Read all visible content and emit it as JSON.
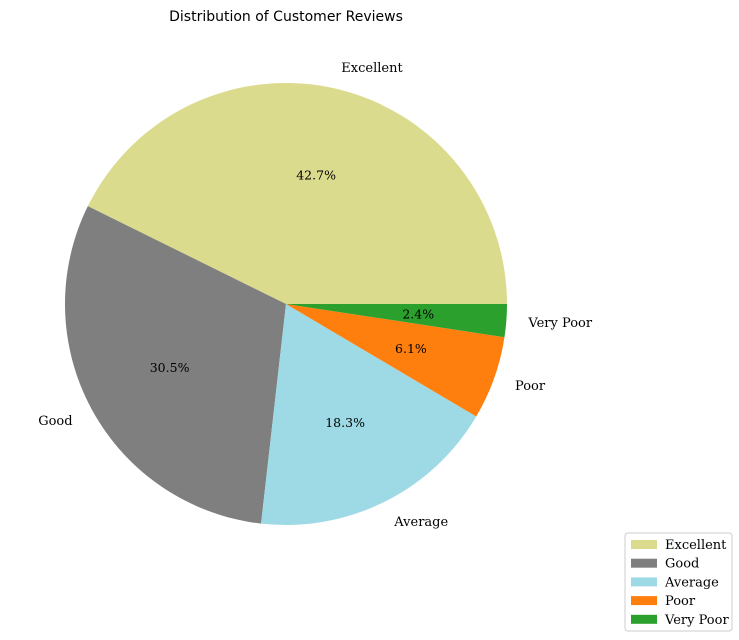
{
  "chart_data": {
    "type": "pie",
    "title": "Distribution of Customer Reviews",
    "categories": [
      "Excellent",
      "Good",
      "Average",
      "Poor",
      "Very Poor"
    ],
    "values": [
      42.7,
      30.5,
      18.3,
      6.1,
      2.4
    ],
    "percent_labels": [
      "42.7%",
      "30.5%",
      "18.3%",
      "6.1%",
      "2.4%"
    ],
    "colors": [
      "#dbdb8d",
      "#7f7f7f",
      "#9edae5",
      "#ff7f0e",
      "#2ca02c"
    ],
    "start_angle_deg": 0,
    "direction": "counterclockwise",
    "legend": {
      "placement": "bottom-right",
      "entries": [
        "Excellent",
        "Good",
        "Average",
        "Poor",
        "Very Poor"
      ]
    }
  }
}
